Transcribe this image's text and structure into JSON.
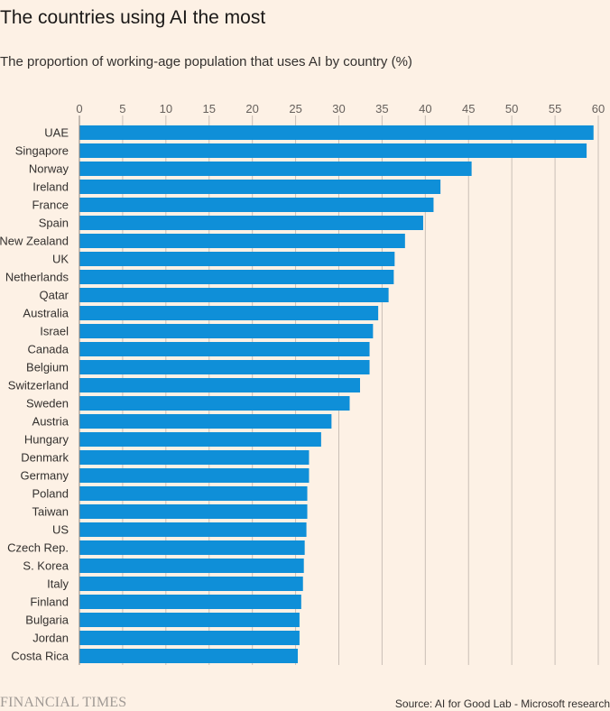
{
  "title": "The countries using AI the most",
  "subtitle": "The proportion of working-age population that uses AI by country (%)",
  "footer": {
    "brand": "FINANCIAL TIMES",
    "source": "Source: AI for Good Lab - Microsoft research"
  },
  "colors": {
    "background": "#fdf1e5",
    "bar": "#0f8fd8",
    "gridline": "#c9bfb6"
  },
  "chart_data": {
    "type": "bar",
    "orientation": "horizontal",
    "title": "The countries using AI the most",
    "subtitle": "The proportion of working-age population that uses AI by country (%)",
    "xlim": [
      0,
      60
    ],
    "xticks": [
      0,
      5,
      10,
      15,
      20,
      25,
      30,
      35,
      40,
      45,
      50,
      55,
      60
    ],
    "x_axis_position": "top",
    "grid": true,
    "categories": [
      "UAE",
      "Singapore",
      "Norway",
      "Ireland",
      "France",
      "Spain",
      "New Zealand",
      "UK",
      "Netherlands",
      "Qatar",
      "Australia",
      "Israel",
      "Canada",
      "Belgium",
      "Switzerland",
      "Sweden",
      "Austria",
      "Hungary",
      "Denmark",
      "Germany",
      "Poland",
      "Taiwan",
      "US",
      "Czech Rep.",
      "S. Korea",
      "Italy",
      "Finland",
      "Bulgaria",
      "Jordan",
      "Costa Rica"
    ],
    "values": [
      59.4,
      58.6,
      45.3,
      41.7,
      40.9,
      39.7,
      37.6,
      36.4,
      36.3,
      35.7,
      34.5,
      33.9,
      33.5,
      33.5,
      32.4,
      31.2,
      29.1,
      27.9,
      26.5,
      26.5,
      26.3,
      26.3,
      26.2,
      26.0,
      25.9,
      25.8,
      25.6,
      25.4,
      25.4,
      25.2
    ]
  }
}
